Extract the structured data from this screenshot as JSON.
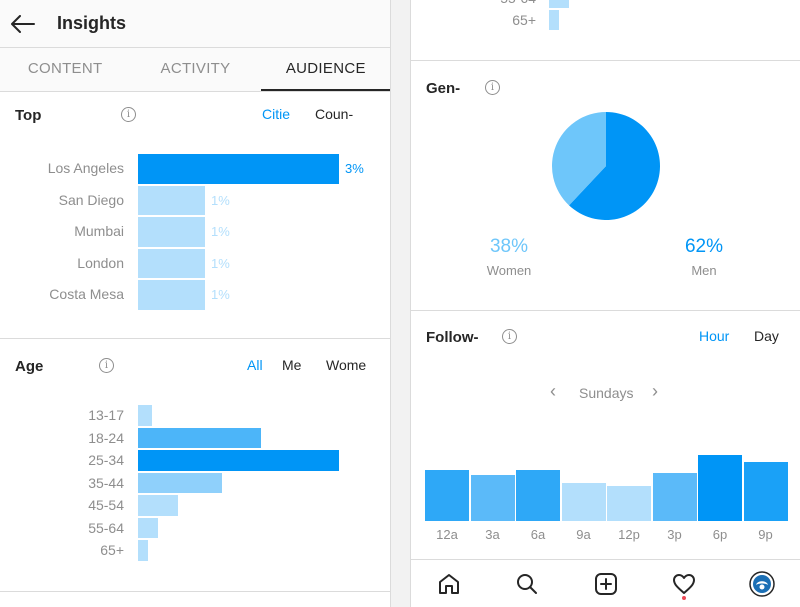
{
  "header": {
    "title": "Insights"
  },
  "tabs": [
    {
      "label": "CONTENT",
      "active": false
    },
    {
      "label": "ACTIVITY",
      "active": false
    },
    {
      "label": "AUDIENCE",
      "active": true
    }
  ],
  "top_locations": {
    "title": "Top",
    "toggles": [
      {
        "label": "Citie",
        "active": true
      },
      {
        "label": "Coun-",
        "active": false
      }
    ],
    "rows": [
      {
        "label": "Los Angeles",
        "percent": "3%",
        "value": 3
      },
      {
        "label": "San Diego",
        "percent": "1%",
        "value": 1
      },
      {
        "label": "Mumbai",
        "percent": "1%",
        "value": 1
      },
      {
        "label": "London",
        "percent": "1%",
        "value": 1
      },
      {
        "label": "Costa Mesa",
        "percent": "1%",
        "value": 1
      }
    ]
  },
  "age": {
    "title": "Age",
    "toggles": [
      {
        "label": "All",
        "active": true
      },
      {
        "label": "Me",
        "active": false
      },
      {
        "label": "Wome",
        "active": false
      }
    ],
    "rows": [
      {
        "label": "13-17",
        "value": 0.07
      },
      {
        "label": "18-24",
        "value": 0.61
      },
      {
        "label": "25-34",
        "value": 1.0
      },
      {
        "label": "35-44",
        "value": 0.42
      },
      {
        "label": "45-54",
        "value": 0.2
      },
      {
        "label": "55-64",
        "value": 0.1
      },
      {
        "label": "65+",
        "value": 0.05
      }
    ],
    "partial_top_labels": [
      "55-64",
      "65+"
    ]
  },
  "gender": {
    "title": "Gen-",
    "women": {
      "percent": "38%",
      "label": "Women",
      "value": 38,
      "color": "#6ec6fa"
    },
    "men": {
      "percent": "62%",
      "label": "Men",
      "value": 62,
      "color": "#0095f6"
    }
  },
  "followers": {
    "title": "Follow-",
    "toggles": [
      {
        "label": "Hour",
        "active": true
      },
      {
        "label": "Day",
        "active": false
      }
    ],
    "day": "Sundays",
    "hours": [
      {
        "label": "12a",
        "value": 0.78
      },
      {
        "label": "3a",
        "value": 0.69
      },
      {
        "label": "6a",
        "value": 0.78
      },
      {
        "label": "9a",
        "value": 0.57
      },
      {
        "label": "12p",
        "value": 0.53
      },
      {
        "label": "3p",
        "value": 0.73
      },
      {
        "label": "6p",
        "value": 1.0
      },
      {
        "label": "9p",
        "value": 0.89
      }
    ]
  },
  "nav": {
    "items": [
      "home-icon",
      "search-icon",
      "add-post-icon",
      "activity-heart-icon",
      "profile-avatar-icon"
    ]
  },
  "colors": {
    "accent": "#0095f6",
    "light_bar": "#b3dffc",
    "mid_bar": "#4cb5f9",
    "notification": "#ed4956"
  }
}
